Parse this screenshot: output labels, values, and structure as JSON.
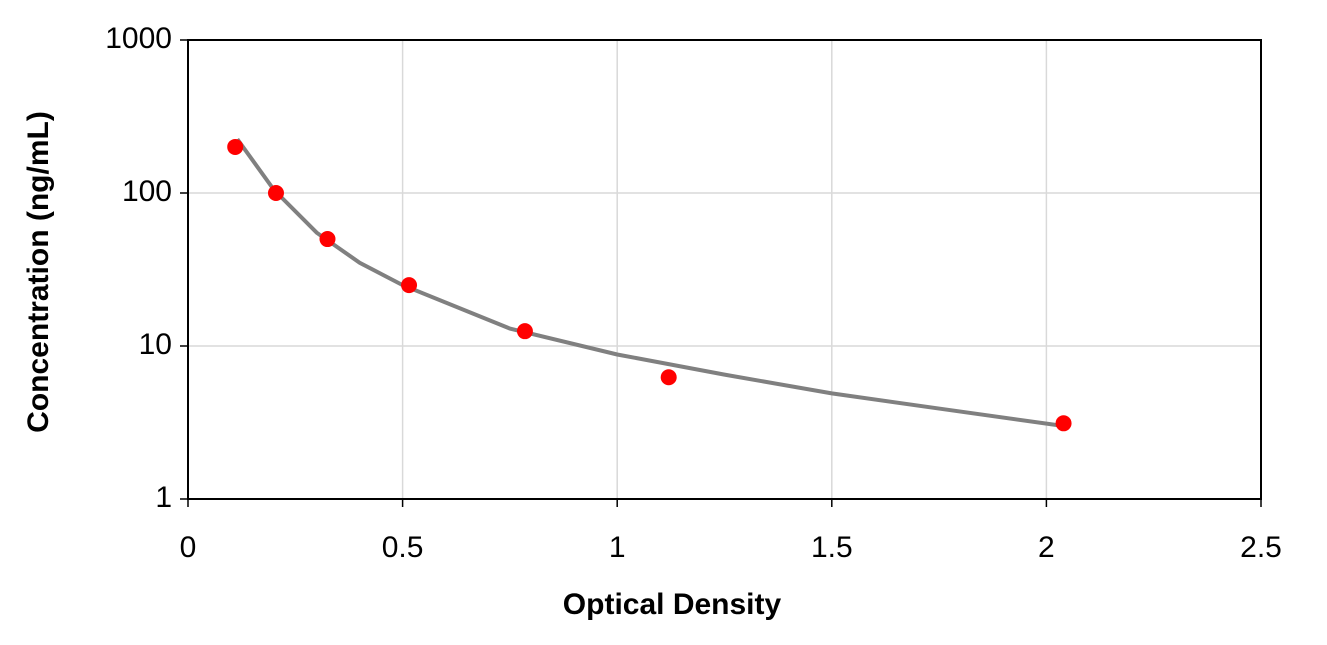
{
  "chart_data": {
    "type": "scatter",
    "xlabel": "Optical Density",
    "ylabel": "Concentration (ng/mL)",
    "xlim": [
      0,
      2.5
    ],
    "xticks": [
      0,
      0.5,
      1,
      1.5,
      2,
      2.5
    ],
    "ylim": [
      1,
      1000
    ],
    "yticks": [
      1,
      10,
      100,
      1000
    ],
    "log_y": true,
    "grid": true,
    "series": [
      {
        "type": "line",
        "color": "#808080",
        "x": [
          0.115,
          0.2,
          0.3,
          0.4,
          0.5,
          0.75,
          1,
          1.25,
          1.5,
          1.75,
          2.04
        ],
        "values": [
          225,
          105,
          55,
          35,
          25,
          13,
          8.8,
          6.5,
          4.9,
          3.9,
          3.0
        ]
      },
      {
        "type": "scatter",
        "color": "#ff0000",
        "x": [
          0.11,
          0.205,
          0.325,
          0.515,
          0.785,
          1.12,
          2.04
        ],
        "values": [
          200,
          100,
          50,
          25,
          12.5,
          6.25,
          3.125
        ]
      }
    ]
  }
}
